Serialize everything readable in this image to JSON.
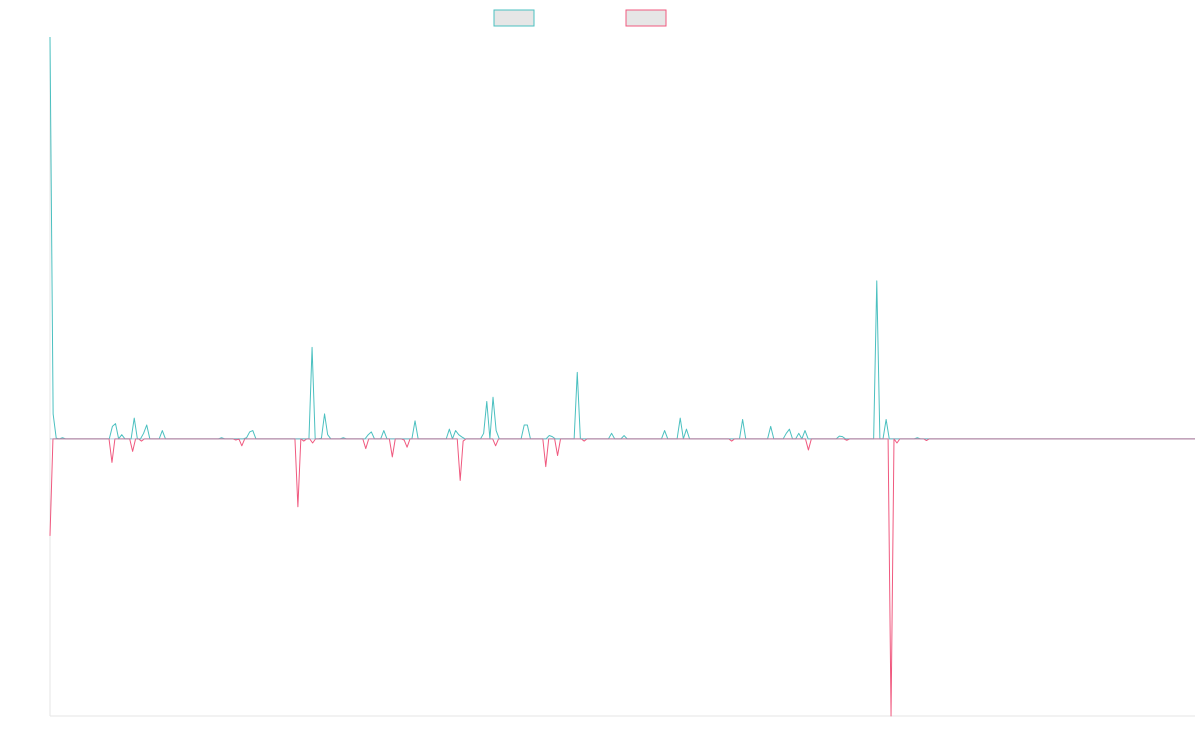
{
  "chart_data": {
    "type": "line",
    "title": "",
    "xlabel": "",
    "ylabel": "",
    "legend_position": "top-center",
    "grid": false,
    "xlim": [
      0,
      360
    ],
    "ylim": [
      -1.0,
      1.45
    ],
    "series": [
      {
        "name": "",
        "color": "#4bc0c0",
        "style": "positive-spikes",
        "values": [
          1.45,
          0.09,
          0.002,
          0,
          0.004,
          0,
          0,
          0,
          0,
          0,
          0,
          0,
          0,
          0,
          0,
          0,
          0,
          0,
          0,
          0,
          0.045,
          0.055,
          0,
          0.015,
          0,
          0,
          0,
          0.075,
          0,
          0,
          0.02,
          0.05,
          0,
          0,
          0,
          0,
          0.03,
          0,
          0,
          0,
          0,
          0,
          0,
          0,
          0,
          0,
          0,
          0,
          0,
          0,
          0,
          0,
          0,
          0,
          0,
          0.004,
          0,
          0,
          0,
          0,
          0,
          0,
          0,
          0.004,
          0.025,
          0.03,
          0,
          0,
          0,
          0,
          0,
          0,
          0,
          0,
          0,
          0,
          0,
          0,
          0,
          0,
          0,
          0,
          0,
          0,
          0.33,
          0,
          0,
          0.002,
          0.09,
          0.015,
          0,
          0,
          0,
          0,
          0.004,
          0,
          0,
          0,
          0,
          0,
          0,
          0,
          0.015,
          0.025,
          0,
          0,
          0,
          0.03,
          0,
          0,
          0,
          0,
          0,
          0,
          0,
          0,
          0,
          0.065,
          0,
          0,
          0,
          0,
          0,
          0,
          0,
          0,
          0,
          0,
          0.035,
          0,
          0.03,
          0.015,
          0.007,
          0,
          0,
          0,
          0,
          0,
          0,
          0.02,
          0.135,
          0,
          0.15,
          0.03,
          0,
          0,
          0,
          0,
          0,
          0,
          0,
          0,
          0.05,
          0.05,
          0,
          0,
          0,
          0,
          0,
          0,
          0.012,
          0.008,
          0,
          0,
          0,
          0,
          0,
          0,
          0,
          0.24,
          0,
          0,
          0,
          0,
          0,
          0,
          0,
          0,
          0,
          0,
          0.02,
          0,
          0,
          0,
          0.012,
          0,
          0,
          0,
          0,
          0,
          0,
          0,
          0,
          0,
          0,
          0,
          0,
          0.03,
          0,
          0,
          0,
          0,
          0.075,
          0,
          0.035,
          0,
          0,
          0,
          0,
          0,
          0,
          0,
          0,
          0,
          0,
          0,
          0,
          0,
          0,
          0,
          0,
          0,
          0.07,
          0,
          0,
          0,
          0,
          0,
          0,
          0,
          0,
          0.045,
          0,
          0,
          0,
          0,
          0.02,
          0.035,
          0,
          0,
          0.02,
          0,
          0.03,
          0,
          0,
          0,
          0,
          0,
          0,
          0,
          0,
          0,
          0,
          0.01,
          0.008,
          0,
          0,
          0,
          0,
          0,
          0,
          0,
          0,
          0,
          0,
          0.57,
          0,
          0,
          0.07,
          0,
          0,
          0,
          0,
          0,
          0,
          0,
          0,
          0,
          0.004,
          0,
          0,
          0,
          0,
          0,
          0,
          0,
          0,
          0,
          0,
          0,
          0,
          0,
          0,
          0,
          0,
          0,
          0,
          0,
          0,
          0,
          0,
          0,
          0,
          0,
          0,
          0,
          0,
          0,
          0,
          0,
          0,
          0,
          0,
          0,
          0,
          0,
          0,
          0,
          0,
          0,
          0,
          0,
          0,
          0,
          0,
          0,
          0,
          0,
          0,
          0,
          0,
          0,
          0,
          0,
          0,
          0,
          0,
          0,
          0,
          0,
          0,
          0,
          0,
          0,
          0,
          0,
          0,
          0,
          0,
          0,
          0,
          0,
          0,
          0,
          0,
          0,
          0,
          0,
          0,
          0,
          0,
          0,
          0,
          0,
          0,
          0,
          0,
          0
        ]
      },
      {
        "name": "",
        "color": "#f0597f",
        "style": "negative-spikes",
        "values": [
          -0.35,
          0,
          0,
          0,
          0,
          0,
          0,
          0,
          0,
          0,
          0,
          0,
          0,
          0,
          0,
          0,
          0,
          0,
          0,
          0,
          0,
          -0.085,
          0,
          0,
          0,
          0,
          0,
          0,
          -0.045,
          0,
          0,
          -0.008,
          0,
          0,
          0,
          0,
          0,
          0,
          0,
          0,
          0,
          0,
          0,
          0,
          0,
          0,
          0,
          0,
          0,
          0,
          0,
          0,
          0,
          0,
          0,
          0,
          0,
          0,
          0,
          0,
          0,
          0,
          0,
          -0.004,
          0,
          -0.025,
          0,
          0,
          0,
          0,
          0,
          0,
          0,
          0,
          0,
          0,
          0,
          0,
          0,
          0,
          0,
          0,
          0,
          0,
          -0.245,
          0,
          -0.008,
          0,
          0,
          -0.015,
          0,
          0,
          0,
          0,
          0,
          0,
          0,
          0,
          0,
          0,
          0,
          0,
          0,
          0,
          0,
          0,
          0,
          -0.035,
          0,
          0,
          0,
          0,
          0,
          0,
          0,
          0,
          -0.065,
          0,
          0,
          0,
          -0.004,
          -0.03,
          0,
          0,
          0,
          0,
          0,
          0,
          0,
          0,
          0,
          0,
          0,
          0,
          0,
          0,
          0,
          0,
          0,
          -0.15,
          -0.008,
          0,
          0,
          0,
          0,
          0,
          0,
          0,
          0,
          0,
          0,
          -0.025,
          0,
          0,
          0,
          0,
          0,
          0,
          0,
          0,
          0,
          0,
          0,
          0,
          0,
          0,
          0,
          0,
          -0.1,
          0,
          0,
          0,
          -0.06,
          0,
          0,
          0,
          0,
          0,
          0,
          0,
          0,
          -0.008,
          0,
          0,
          0,
          0,
          0,
          0,
          0,
          0,
          0,
          0,
          0,
          0,
          0,
          0,
          0,
          0,
          0,
          0,
          0,
          0,
          0,
          0,
          0,
          0,
          0,
          0,
          0,
          0,
          0,
          0,
          0,
          0,
          0,
          0,
          0,
          0,
          0,
          0,
          0,
          0,
          0,
          0,
          0,
          0,
          0,
          0,
          0,
          0,
          0,
          -0.008,
          0,
          0,
          0,
          0,
          0,
          0,
          0,
          0,
          0,
          0,
          0,
          0,
          0,
          0,
          0,
          0,
          0,
          0,
          0,
          0,
          0,
          0,
          0,
          0,
          0,
          -0.04,
          0,
          0,
          0,
          0,
          0,
          0,
          0,
          0,
          0,
          0,
          0,
          0,
          -0.005,
          0,
          0,
          0,
          0,
          0,
          0,
          0,
          0,
          0,
          0,
          0,
          0,
          0,
          0,
          -1.0,
          0,
          -0.015,
          0,
          0,
          0,
          0,
          0,
          0,
          0,
          0,
          0,
          -0.006,
          0,
          0,
          0,
          0,
          0,
          0,
          0,
          0,
          0,
          0,
          0,
          0,
          0,
          0,
          0,
          0,
          0,
          0,
          0,
          0,
          0,
          0,
          0,
          0,
          0,
          0,
          0,
          0,
          0,
          0,
          0,
          0,
          0,
          0,
          0,
          0,
          0,
          0,
          0,
          0,
          0,
          0,
          0,
          0,
          0,
          0,
          0,
          0,
          0,
          0,
          0,
          0,
          0,
          0,
          0,
          0,
          0,
          0,
          0,
          0,
          0,
          0,
          0,
          0,
          0,
          0,
          0,
          0,
          0,
          0,
          0,
          0,
          0,
          0,
          0,
          0,
          0,
          0,
          0,
          0,
          0,
          0,
          0,
          0,
          0,
          0,
          0,
          0,
          0,
          0,
          0
        ]
      }
    ]
  }
}
